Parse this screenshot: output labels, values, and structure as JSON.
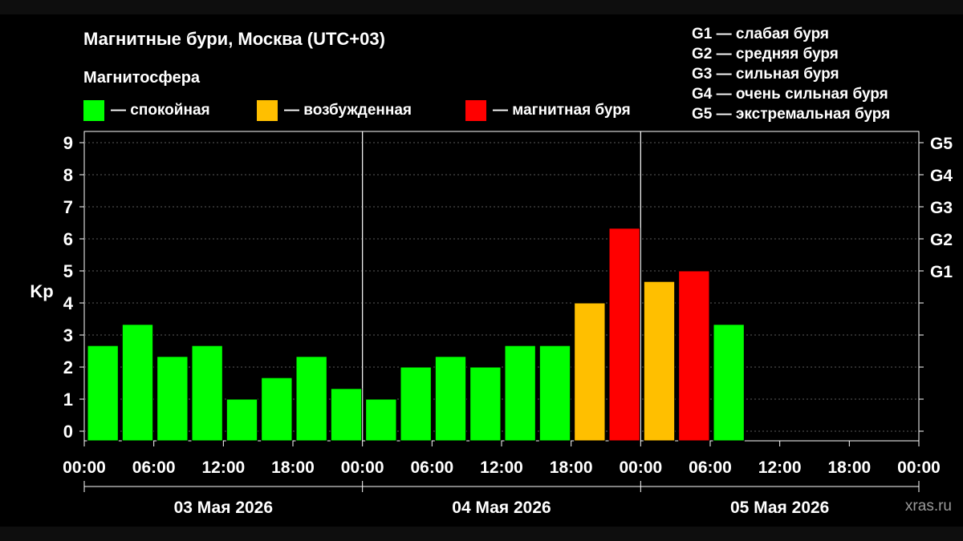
{
  "title": "Магнитные бури, Москва (UTC+03)",
  "magnetosphere": {
    "title": "Магнитосфера",
    "items": [
      {
        "color": "#00ff00",
        "label": "— спокойная"
      },
      {
        "color": "#ffbf00",
        "label": "— возбужденная"
      },
      {
        "color": "#ff0000",
        "label": "— магнитная буря"
      }
    ]
  },
  "g_scale": [
    "G1 — слабая буря",
    "G2 — средняя буря",
    "G3 — сильная буря",
    "G4 — очень сильная буря",
    "G5 — экстремальная буря"
  ],
  "watermark": "xras.ru",
  "chart_data": {
    "type": "bar",
    "ylabel": "Kp",
    "ylim": [
      0,
      9
    ],
    "yticks": [
      "0",
      "1",
      "2",
      "3",
      "4",
      "5",
      "6",
      "7",
      "8",
      "9"
    ],
    "right_axis": [
      {
        "kp": 5,
        "label": "G1"
      },
      {
        "kp": 6,
        "label": "G2"
      },
      {
        "kp": 7,
        "label": "G3"
      },
      {
        "kp": 8,
        "label": "G4"
      },
      {
        "kp": 9,
        "label": "G5"
      }
    ],
    "xticks": [
      "00:00",
      "06:00",
      "12:00",
      "18:00",
      "00:00",
      "06:00",
      "12:00",
      "18:00",
      "00:00",
      "06:00",
      "12:00",
      "18:00",
      "00:00"
    ],
    "days": [
      "03 Мая 2026",
      "04 Мая 2026",
      "05 Мая 2026"
    ],
    "interval_hours": 3,
    "values": [
      2.67,
      3.33,
      2.33,
      2.67,
      1.0,
      1.67,
      2.33,
      1.33,
      1.0,
      2.0,
      2.33,
      2.0,
      2.67,
      2.67,
      4.0,
      6.33,
      4.67,
      5.0,
      3.33
    ],
    "levels": [
      "quiet",
      "quiet",
      "quiet",
      "quiet",
      "quiet",
      "quiet",
      "quiet",
      "quiet",
      "quiet",
      "quiet",
      "quiet",
      "quiet",
      "quiet",
      "quiet",
      "active",
      "storm",
      "active",
      "storm",
      "quiet"
    ],
    "level_colors": {
      "quiet": "#00ff00",
      "active": "#ffbf00",
      "storm": "#ff0000"
    },
    "grid": true
  }
}
